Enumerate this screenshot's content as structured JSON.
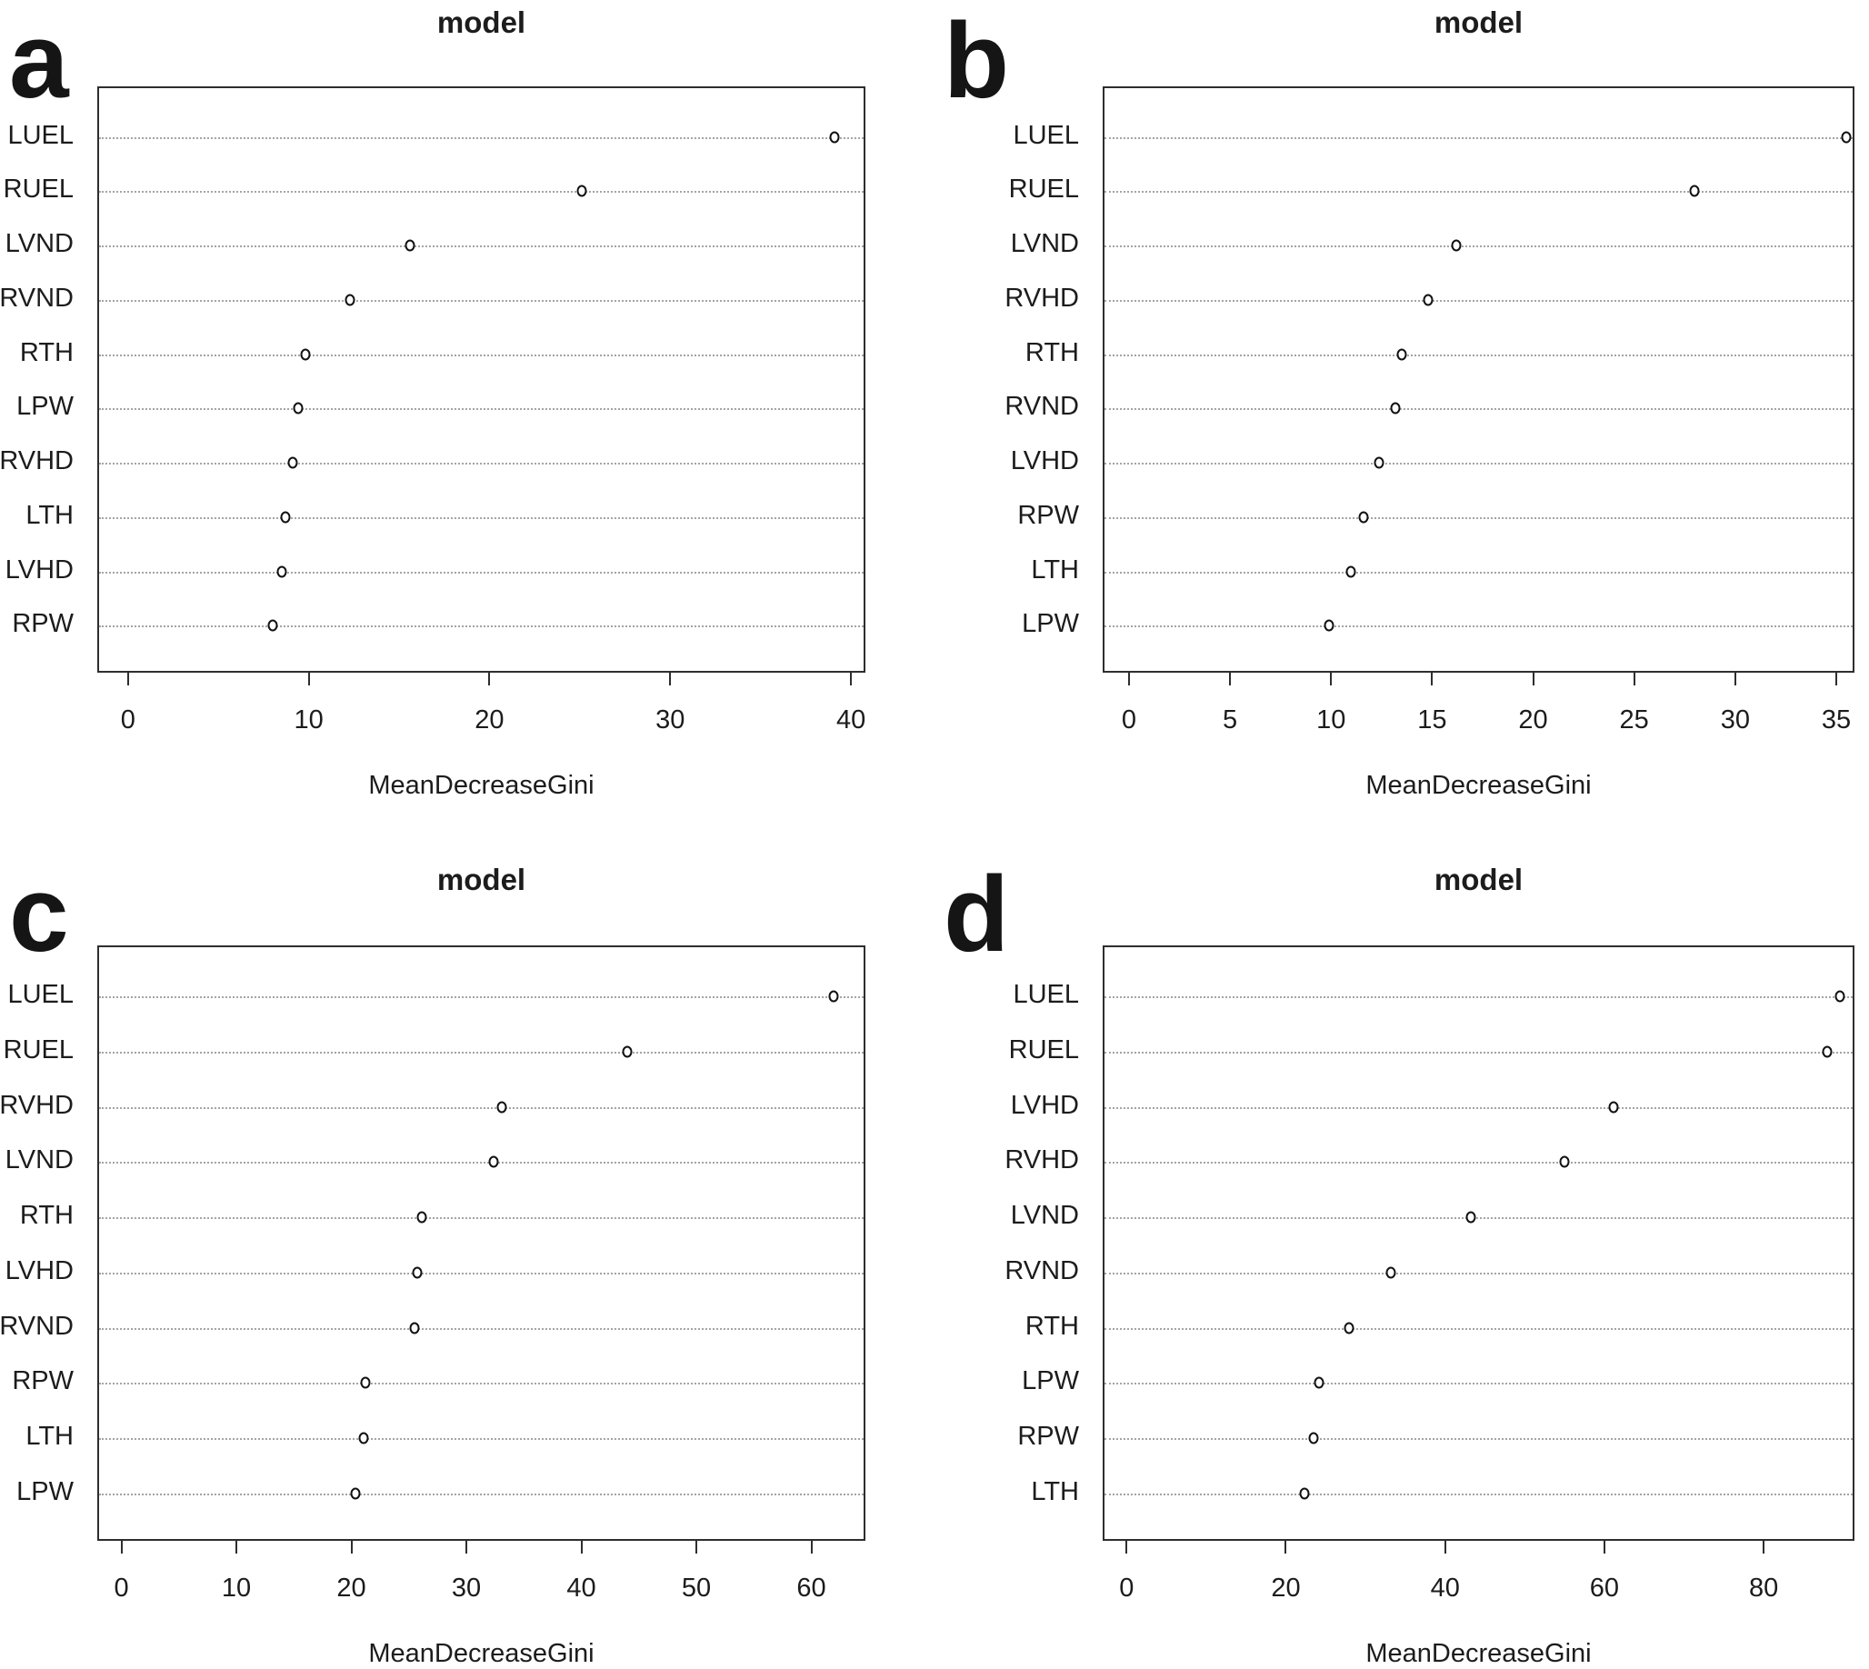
{
  "figure": {
    "background": "#ffffff",
    "text_color": "#1c1c1c",
    "grid_color": "#a4a4a4",
    "marker_style": "open-circle",
    "marker_stroke": "#121212"
  },
  "chart_data": [
    {
      "type": "scatter",
      "variant": "dotchart",
      "panel_label": "a",
      "title": "model",
      "xlabel": "MeanDecreaseGini",
      "categories": [
        "LUEL",
        "RUEL",
        "LVND",
        "RVND",
        "RTH",
        "LPW",
        "RVHD",
        "LTH",
        "LVHD",
        "RPW"
      ],
      "values": [
        39.0,
        25.0,
        15.5,
        12.2,
        9.7,
        9.3,
        9.0,
        8.6,
        8.4,
        7.9
      ],
      "xticks": [
        0,
        10,
        20,
        30,
        40
      ],
      "xlim": [
        -1.7,
        40.8
      ],
      "grid": "dotted-horizontal",
      "legend": "none"
    },
    {
      "type": "scatter",
      "variant": "dotchart",
      "panel_label": "b",
      "title": "model",
      "xlabel": "MeanDecreaseGini",
      "categories": [
        "LUEL",
        "RUEL",
        "LVND",
        "RVHD",
        "RTH",
        "RVND",
        "LVHD",
        "RPW",
        "LTH",
        "LPW"
      ],
      "values": [
        35.4,
        27.9,
        16.1,
        14.7,
        13.4,
        13.1,
        12.3,
        11.5,
        10.9,
        9.8
      ],
      "xticks": [
        0,
        5,
        10,
        15,
        20,
        25,
        30,
        35
      ],
      "xlim": [
        -1.3,
        35.9
      ],
      "grid": "dotted-horizontal",
      "legend": "none"
    },
    {
      "type": "scatter",
      "variant": "dotchart",
      "panel_label": "c",
      "title": "model",
      "xlabel": "MeanDecreaseGini",
      "categories": [
        "LUEL",
        "RUEL",
        "RVHD",
        "LVND",
        "RTH",
        "LVHD",
        "RVND",
        "RPW",
        "LTH",
        "LPW"
      ],
      "values": [
        61.8,
        43.8,
        32.9,
        32.2,
        26.0,
        25.6,
        25.3,
        21.1,
        20.9,
        20.2
      ],
      "xticks": [
        0,
        10,
        20,
        30,
        40,
        50,
        60
      ],
      "xlim": [
        -2.1,
        64.7
      ],
      "grid": "dotted-horizontal",
      "legend": "none"
    },
    {
      "type": "scatter",
      "variant": "dotchart",
      "panel_label": "d",
      "title": "model",
      "xlabel": "MeanDecreaseGini",
      "categories": [
        "LUEL",
        "RUEL",
        "LVHD",
        "RVHD",
        "LVND",
        "RVND",
        "RTH",
        "LPW",
        "RPW",
        "LTH"
      ],
      "values": [
        89.4,
        87.8,
        60.9,
        54.8,
        43.0,
        32.9,
        27.7,
        23.9,
        23.2,
        22.1
      ],
      "xticks": [
        0,
        20,
        40,
        60,
        80
      ],
      "xlim": [
        -3.0,
        91.4
      ],
      "grid": "dotted-horizontal",
      "legend": "none"
    }
  ]
}
